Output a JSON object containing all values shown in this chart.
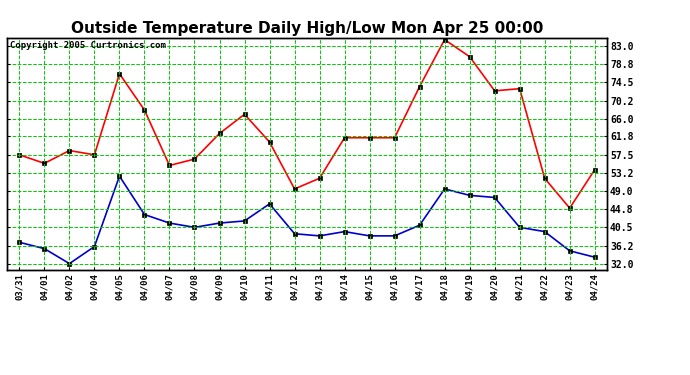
{
  "title": "Outside Temperature Daily High/Low Mon Apr 25 00:00",
  "copyright": "Copyright 2005 Curtronics.com",
  "x_labels": [
    "03/31",
    "04/01",
    "04/02",
    "04/04",
    "04/05",
    "04/06",
    "04/07",
    "04/08",
    "04/09",
    "04/10",
    "04/11",
    "04/12",
    "04/13",
    "04/14",
    "04/15",
    "04/16",
    "04/17",
    "04/18",
    "04/19",
    "04/20",
    "04/21",
    "04/22",
    "04/23",
    "04/24"
  ],
  "high_temps": [
    57.5,
    55.5,
    58.5,
    57.5,
    76.5,
    68.0,
    55.0,
    56.5,
    62.5,
    67.0,
    60.5,
    49.5,
    52.0,
    61.5,
    61.5,
    61.5,
    73.5,
    84.5,
    80.5,
    72.5,
    73.0,
    52.0,
    45.0,
    54.0
  ],
  "low_temps": [
    37.0,
    35.5,
    32.0,
    36.0,
    52.5,
    43.5,
    41.5,
    40.5,
    41.5,
    42.0,
    46.0,
    39.0,
    38.5,
    39.5,
    38.5,
    38.5,
    41.0,
    49.5,
    48.0,
    47.5,
    40.5,
    39.5,
    35.0,
    33.5
  ],
  "high_color": "#ff0000",
  "low_color": "#0000cc",
  "bg_color": "#ffffff",
  "plot_bg_color": "#ffffff",
  "grid_color": "#00cc00",
  "title_fontsize": 11,
  "y_ticks": [
    32.0,
    36.2,
    40.5,
    44.8,
    49.0,
    53.2,
    57.5,
    61.8,
    66.0,
    70.2,
    74.5,
    78.8,
    83.0
  ],
  "y_min": 30.5,
  "y_max": 85.0,
  "marker": "s",
  "marker_size": 3
}
